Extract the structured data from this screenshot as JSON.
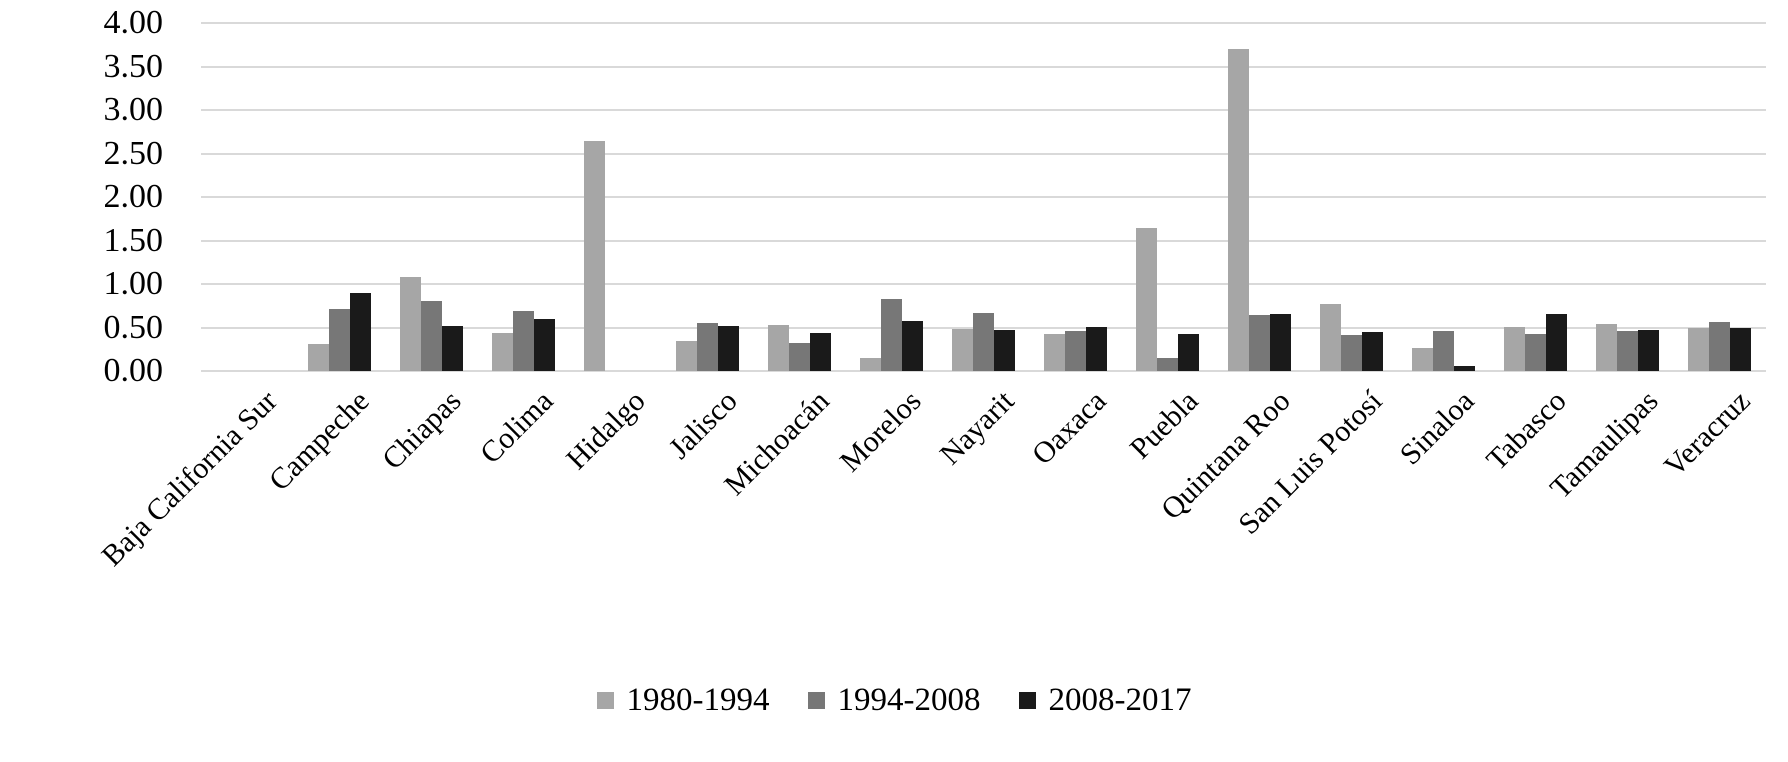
{
  "chart_data": {
    "type": "bar",
    "title": "",
    "xlabel": "",
    "ylabel": "",
    "categories": [
      "Baja California Sur",
      "Campeche",
      "Chiapas",
      "Colima",
      "Hidalgo",
      "Jalisco",
      "Michoacán",
      "Morelos",
      "Nayarit",
      "Oaxaca",
      "Puebla",
      "Quintana Roo",
      "San Luis Potosí",
      "Sinaloa",
      "Tabasco",
      "Tamaulipas",
      "Veracruz"
    ],
    "series": [
      {
        "name": "1980-1994",
        "color": "#a6a6a6",
        "values": [
          0,
          0.31,
          1.08,
          0.44,
          2.64,
          0.34,
          0.53,
          0.15,
          0.48,
          0.42,
          1.64,
          3.7,
          0.77,
          0.26,
          0.5,
          0.54,
          0.49
        ]
      },
      {
        "name": "1994-2008",
        "color": "#777777",
        "values": [
          0,
          0.71,
          0.8,
          0.69,
          0,
          0.55,
          0.32,
          0.83,
          0.67,
          0.46,
          0.15,
          0.64,
          0.41,
          0.46,
          0.43,
          0.46,
          0.56
        ]
      },
      {
        "name": "2008-2017",
        "color": "#1a1a1a",
        "values": [
          0,
          0.9,
          0.52,
          0.6,
          0,
          0.52,
          0.44,
          0.58,
          0.47,
          0.51,
          0.42,
          0.65,
          0.45,
          0.06,
          0.65,
          0.47,
          0.49
        ]
      }
    ],
    "ylim": [
      0,
      4
    ],
    "ytick_step": 0.5,
    "ytick_labels": [
      "0.00",
      "0.50",
      "1.00",
      "1.50",
      "2.00",
      "2.50",
      "3.00",
      "3.50",
      "4.00"
    ],
    "grid": true,
    "gridline_color": "#d9d9d9",
    "legend_position": "bottom",
    "x_label_rotation_deg": 45
  }
}
